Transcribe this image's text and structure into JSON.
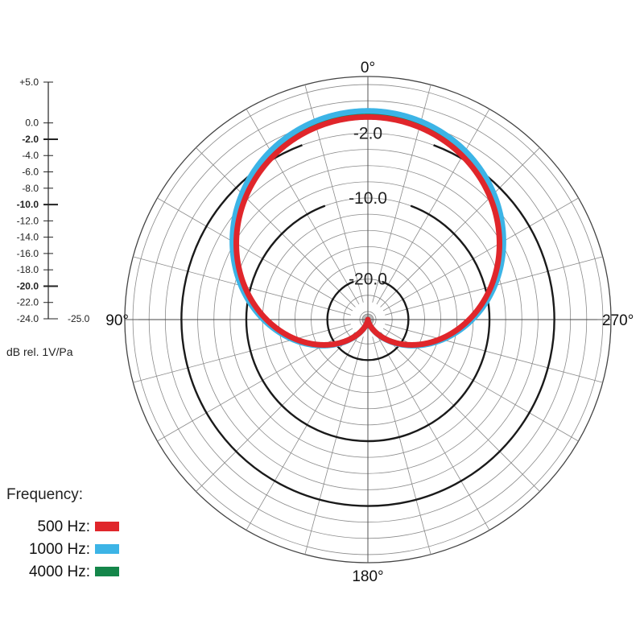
{
  "chart_data": {
    "type": "polar",
    "angle_unit": "degrees",
    "angle_labels": [
      {
        "angle": 0,
        "text": "0°"
      },
      {
        "angle": 90,
        "text": "90°"
      },
      {
        "angle": 180,
        "text": "180°"
      },
      {
        "angle": 270,
        "text": "270°"
      }
    ],
    "radial_range": [
      -25.0,
      5.0
    ],
    "radial_unit_label": "dB rel. 1V/Pa",
    "radial_scale_labels": [
      {
        "value": 5.0,
        "text": "+5.0",
        "bold": false
      },
      {
        "value": 0.0,
        "text": "0.0",
        "bold": false
      },
      {
        "value": -2.0,
        "text": "-2.0",
        "bold": true
      },
      {
        "value": -4.0,
        "text": "-4.0",
        "bold": false
      },
      {
        "value": -6.0,
        "text": "-6.0",
        "bold": false
      },
      {
        "value": -8.0,
        "text": "-8.0",
        "bold": false
      },
      {
        "value": -10.0,
        "text": "-10.0",
        "bold": true
      },
      {
        "value": -12.0,
        "text": "-12.0",
        "bold": false
      },
      {
        "value": -14.0,
        "text": "-14.0",
        "bold": false
      },
      {
        "value": -16.0,
        "text": "-16.0",
        "bold": false
      },
      {
        "value": -18.0,
        "text": "-18.0",
        "bold": false
      },
      {
        "value": -20.0,
        "text": "-20.0",
        "bold": true
      },
      {
        "value": -22.0,
        "text": "-22.0",
        "bold": false
      },
      {
        "value": -24.0,
        "text": "-24.0",
        "bold": false
      },
      {
        "value": -25.0,
        "text": "-25.0",
        "bold": false
      }
    ],
    "highlighted_rings": [
      {
        "value": -2.0,
        "text": "-2.0"
      },
      {
        "value": -10.0,
        "text": "-10.0"
      },
      {
        "value": -20.0,
        "text": "-20.0"
      }
    ],
    "grid": true,
    "legend": {
      "title": "Frequency:",
      "placement": "bottom-left"
    },
    "series": [
      {
        "name": "500 Hz:",
        "color": "#e0262b",
        "pattern": "cardioid",
        "peak_db": 0.0
      },
      {
        "name": "1000 Hz:",
        "color": "#3cb4e6",
        "pattern": "cardioid",
        "peak_db": 0.0
      },
      {
        "name": "4000 Hz:",
        "color": "#14864a",
        "pattern": "cardioid",
        "peak_db": 0.0
      }
    ]
  }
}
